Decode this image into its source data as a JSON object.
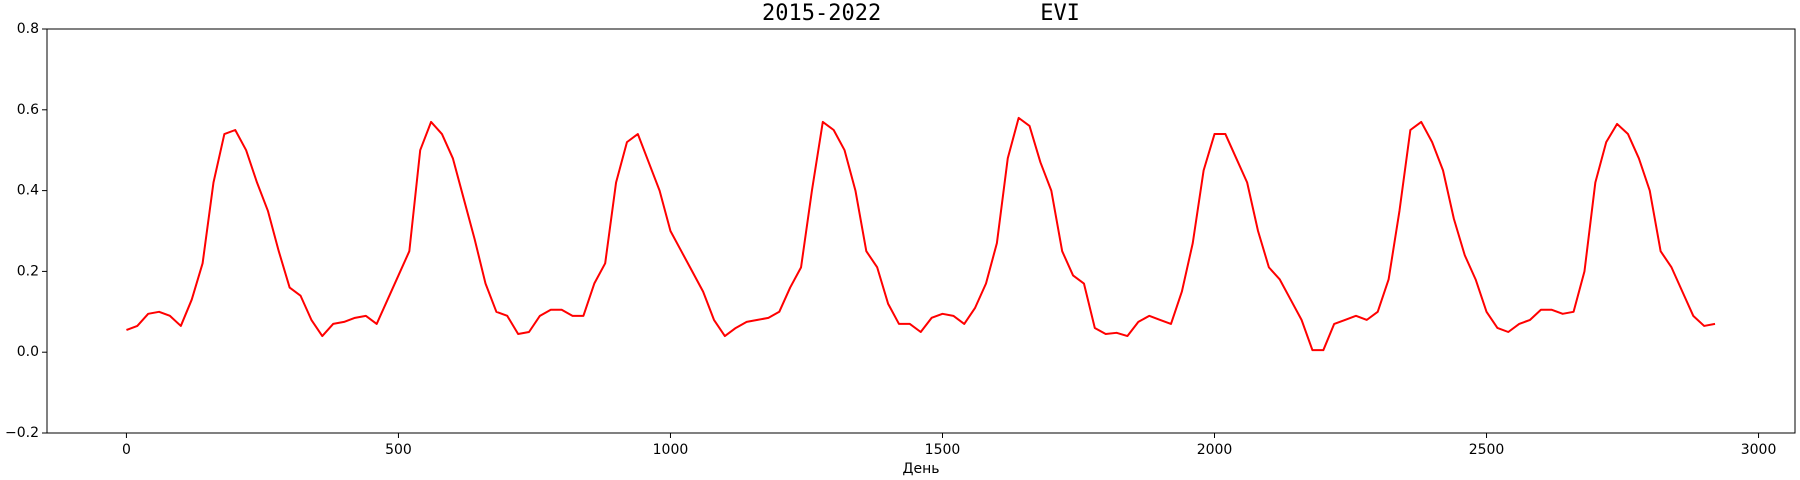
{
  "chart_data": {
    "type": "line",
    "title": "2015-2022            EVI",
    "xlabel": "День",
    "x": [
      0,
      20,
      40,
      60,
      80,
      100,
      120,
      140,
      160,
      180,
      200,
      220,
      240,
      260,
      280,
      300,
      320,
      340,
      360,
      380,
      400,
      420,
      440,
      460,
      480,
      500,
      520,
      540,
      560,
      580,
      600,
      620,
      640,
      660,
      680,
      700,
      720,
      740,
      760,
      780,
      800,
      820,
      840,
      860,
      880,
      900,
      920,
      940,
      960,
      980,
      1000,
      1020,
      1040,
      1060,
      1080,
      1100,
      1120,
      1140,
      1160,
      1180,
      1200,
      1220,
      1240,
      1260,
      1280,
      1300,
      1320,
      1340,
      1360,
      1380,
      1400,
      1420,
      1440,
      1460,
      1480,
      1500,
      1520,
      1540,
      1560,
      1580,
      1600,
      1620,
      1640,
      1660,
      1680,
      1700,
      1720,
      1740,
      1760,
      1780,
      1800,
      1820,
      1840,
      1860,
      1880,
      1900,
      1920,
      1940,
      1960,
      1980,
      2000,
      2020,
      2040,
      2060,
      2080,
      2100,
      2120,
      2140,
      2160,
      2180,
      2200,
      2220,
      2240,
      2260,
      2280,
      2300,
      2320,
      2340,
      2360,
      2380,
      2400,
      2420,
      2440,
      2460,
      2480,
      2500,
      2520,
      2540,
      2560,
      2580,
      2600,
      2620,
      2640,
      2660,
      2680,
      2700,
      2720,
      2740,
      2760,
      2780,
      2800,
      2820,
      2840,
      2860,
      2880,
      2900,
      2920
    ],
    "series": [
      {
        "name": "EVI",
        "color": "#ff0000",
        "values": [
          0.055,
          0.065,
          0.095,
          0.1,
          0.09,
          0.065,
          0.13,
          0.22,
          0.42,
          0.54,
          0.55,
          0.5,
          0.42,
          0.35,
          0.25,
          0.16,
          0.14,
          0.08,
          0.04,
          0.07,
          0.075,
          0.085,
          0.09,
          0.07,
          0.13,
          0.19,
          0.25,
          0.5,
          0.57,
          0.54,
          0.48,
          0.38,
          0.28,
          0.17,
          0.1,
          0.09,
          0.045,
          0.05,
          0.09,
          0.105,
          0.105,
          0.09,
          0.09,
          0.17,
          0.22,
          0.42,
          0.52,
          0.54,
          0.47,
          0.4,
          0.3,
          0.25,
          0.2,
          0.15,
          0.08,
          0.04,
          0.06,
          0.075,
          0.08,
          0.085,
          0.1,
          0.16,
          0.21,
          0.4,
          0.57,
          0.55,
          0.5,
          0.4,
          0.25,
          0.21,
          0.12,
          0.07,
          0.07,
          0.05,
          0.085,
          0.095,
          0.09,
          0.07,
          0.11,
          0.17,
          0.27,
          0.48,
          0.58,
          0.56,
          0.47,
          0.4,
          0.25,
          0.19,
          0.17,
          0.06,
          0.045,
          0.048,
          0.04,
          0.075,
          0.09,
          0.08,
          0.07,
          0.15,
          0.27,
          0.45,
          0.54,
          0.54,
          0.48,
          0.42,
          0.3,
          0.21,
          0.18,
          0.13,
          0.08,
          0.005,
          0.005,
          0.07,
          0.08,
          0.09,
          0.08,
          0.1,
          0.18,
          0.35,
          0.55,
          0.57,
          0.52,
          0.45,
          0.33,
          0.24,
          0.18,
          0.1,
          0.06,
          0.05,
          0.07,
          0.08,
          0.105,
          0.105,
          0.095,
          0.1,
          0.2,
          0.42,
          0.52,
          0.565,
          0.54,
          0.48,
          0.4,
          0.25,
          0.21,
          0.15,
          0.09,
          0.065,
          0.07
        ]
      }
    ],
    "xlim": [
      -146,
      3067
    ],
    "ylim": [
      -0.2,
      0.8
    ],
    "xticks": [
      0,
      500,
      1000,
      1500,
      2000,
      2500,
      3000
    ],
    "yticks": [
      {
        "value": -0.2,
        "label": "−0.2"
      },
      {
        "value": 0,
        "label": "0.0"
      },
      {
        "value": 0.2,
        "label": "0.2"
      },
      {
        "value": 0.4,
        "label": "0.4"
      },
      {
        "value": 0.6,
        "label": "0.6"
      },
      {
        "value": 0.8,
        "label": "0.8"
      }
    ]
  }
}
